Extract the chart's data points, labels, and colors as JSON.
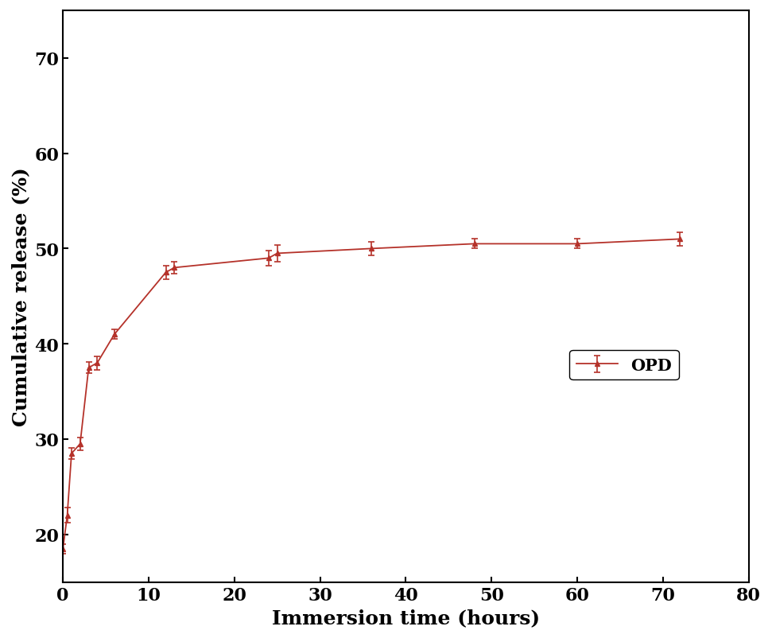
{
  "x": [
    0,
    0.5,
    1,
    2,
    3,
    4,
    6,
    12,
    13,
    24,
    25,
    36,
    48,
    60,
    72
  ],
  "y": [
    18.5,
    22.0,
    28.5,
    29.5,
    37.5,
    38.0,
    41.0,
    47.5,
    48.0,
    49.0,
    49.5,
    50.0,
    50.5,
    50.5,
    51.0
  ],
  "yerr": [
    0.5,
    0.8,
    0.6,
    0.7,
    0.6,
    0.7,
    0.5,
    0.7,
    0.6,
    0.8,
    0.9,
    0.7,
    0.5,
    0.5,
    0.7
  ],
  "line_color": "#b5322a",
  "marker": "^",
  "marker_size": 4,
  "line_width": 1.3,
  "xlabel": "Immersion time (hours)",
  "ylabel": "Cumulative release (%)",
  "xlim": [
    0,
    80
  ],
  "ylim": [
    15,
    75
  ],
  "xticks": [
    0,
    10,
    20,
    30,
    40,
    50,
    60,
    70,
    80
  ],
  "yticks": [
    20,
    30,
    40,
    50,
    60,
    70
  ],
  "legend_label": "OPD",
  "xlabel_fontsize": 18,
  "ylabel_fontsize": 18,
  "tick_fontsize": 16,
  "legend_fontsize": 15,
  "background_color": "#ffffff"
}
